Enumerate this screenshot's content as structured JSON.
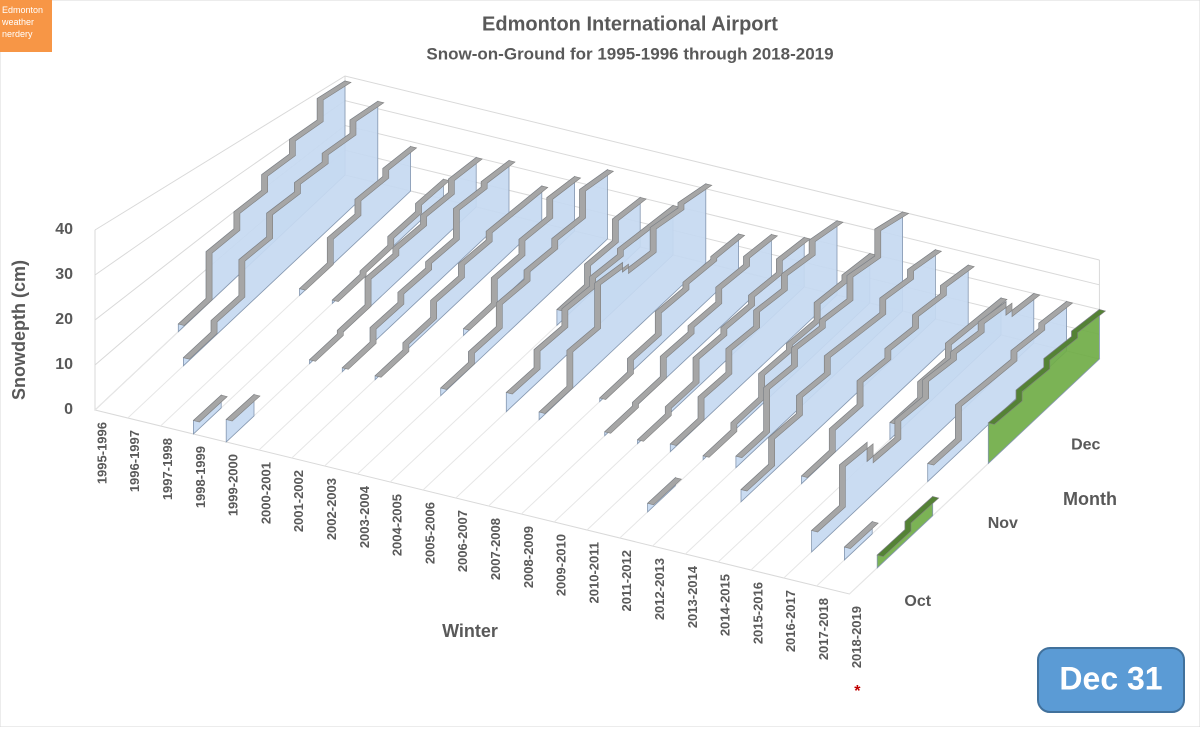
{
  "chart_data": {
    "type": "ribbon3d",
    "title": "Edmonton International Airport",
    "subtitle": "Snow-on-Ground for 1995-1996 through  2018-2019",
    "y_label": "Snowdepth (cm)",
    "depth_label": "Winter",
    "x_label": "Month",
    "badge": "Dec 31",
    "logo": "Edmonton weather nerdery",
    "footnote_marker": "*",
    "categories": [
      "Oct",
      null,
      null,
      "Nov",
      null,
      null,
      "Dec",
      null,
      null
    ],
    "ylim": [
      0,
      40
    ],
    "yticks": [
      0,
      10,
      20,
      30,
      40
    ],
    "grid": true,
    "series": [
      {
        "name": "1995-1996",
        "color": "#c5d9f1",
        "values": [
          null,
          null,
          null,
          2,
          15,
          20,
          25,
          30,
          38
        ]
      },
      {
        "name": "1996-1997",
        "color": "#c5d9f1",
        "values": [
          null,
          null,
          2,
          5,
          15,
          22,
          25,
          28,
          33
        ]
      },
      {
        "name": "1997-1998",
        "color": "#c5d9f1",
        "values": [
          null,
          null,
          null,
          null,
          null,
          2,
          10,
          15,
          18
        ]
      },
      {
        "name": "1998-1999",
        "color": "#c5d9f1",
        "values": [
          3,
          null,
          null,
          null,
          null,
          1,
          2,
          5,
          8
        ]
      },
      {
        "name": "1999-2000",
        "color": "#c5d9f1",
        "values": [
          5,
          null,
          null,
          1,
          2,
          10,
          12,
          15,
          20
        ]
      },
      {
        "name": "2000-2001",
        "color": "#c5d9f1",
        "values": [
          null,
          null,
          null,
          1,
          5,
          8,
          10,
          20,
          22
        ]
      },
      {
        "name": "2001-2002",
        "color": "#c5d9f1",
        "values": [
          null,
          null,
          null,
          1,
          3,
          8,
          12,
          15,
          15
        ]
      },
      {
        "name": "2002-2003",
        "color": "#c5d9f1",
        "values": [
          null,
          null,
          null,
          null,
          null,
          2,
          10,
          15,
          22
        ]
      },
      {
        "name": "2003-2004",
        "color": "#c5d9f1",
        "values": [
          null,
          null,
          null,
          2,
          5,
          12,
          15,
          18,
          28
        ]
      },
      {
        "name": "2004-2005",
        "color": "#c5d9f1",
        "values": [
          null,
          null,
          null,
          null,
          null,
          null,
          5,
          12,
          20
        ]
      },
      {
        "name": "2005-2006",
        "color": "#c5d9f1",
        "values": [
          null,
          null,
          null,
          5,
          10,
          15,
          18,
          20,
          20
        ]
      },
      {
        "name": "2006-2007",
        "color": "#c5d9f1",
        "values": [
          null,
          null,
          null,
          2,
          12,
          25,
          22,
          30,
          32
        ]
      },
      {
        "name": "2007-2008",
        "color": "#c5d9f1",
        "values": [
          null,
          null,
          null,
          null,
          1,
          5,
          12,
          14,
          15
        ]
      },
      {
        "name": "2008-2009",
        "color": "#c5d9f1",
        "values": [
          null,
          null,
          null,
          1,
          2,
          8,
          10,
          15,
          18
        ]
      },
      {
        "name": "2009-2010",
        "color": "#c5d9f1",
        "values": [
          null,
          null,
          null,
          1,
          3,
          10,
          12,
          15,
          20
        ]
      },
      {
        "name": "2010-2011",
        "color": "#c5d9f1",
        "values": [
          null,
          null,
          null,
          2,
          8,
          15,
          20,
          25,
          30
        ]
      },
      {
        "name": "2011-2012",
        "color": "#c5d9f1",
        "values": [
          null,
          2,
          null,
          1,
          3,
          10,
          12,
          18,
          20
        ]
      },
      {
        "name": "2012-2013",
        "color": "#c5d9f1",
        "values": [
          null,
          null,
          null,
          3,
          15,
          20,
          22,
          30,
          40
        ]
      },
      {
        "name": "2013-2014",
        "color": "#c5d9f1",
        "values": [
          null,
          null,
          3,
          10,
          15,
          20,
          20,
          25,
          28
        ]
      },
      {
        "name": "2014-2015",
        "color": "#c5d9f1",
        "values": [
          null,
          null,
          null,
          2,
          8,
          15,
          18,
          22,
          25
        ]
      },
      {
        "name": "2015-2016",
        "color": "#c5d9f1",
        "values": [
          null,
          null,
          null,
          null,
          null,
          5,
          10,
          15,
          15
        ]
      },
      {
        "name": "2016-2017",
        "color": "#c5d9f1",
        "values": [
          null,
          5,
          15,
          10,
          15,
          20,
          22,
          25,
          20
        ]
      },
      {
        "name": "2017-2018",
        "color": "#c5d9f1",
        "values": [
          null,
          3,
          null,
          null,
          5,
          15,
          15,
          18,
          20
        ]
      },
      {
        "name": "2018-2019",
        "color": "#70ad47",
        "values": [
          null,
          3,
          5,
          null,
          null,
          12,
          15,
          18,
          20
        ]
      }
    ]
  }
}
